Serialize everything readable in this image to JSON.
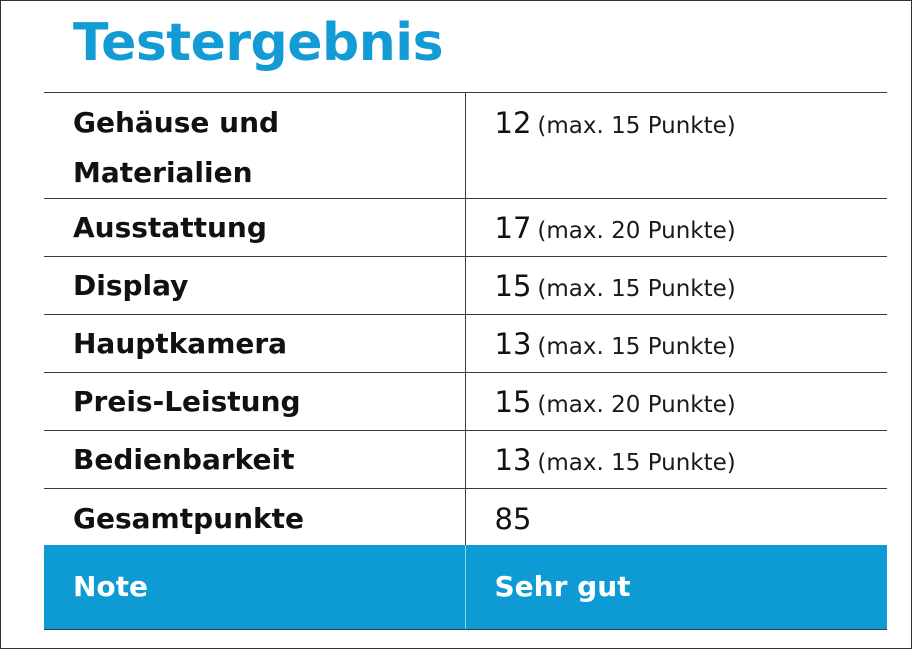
{
  "title": "Testergebnis",
  "rows": [
    {
      "label_line1": "Gehäuse und",
      "label_line2": "Materialien",
      "points": "12",
      "max": "(max. 15 Punkte)"
    },
    {
      "label": "Ausstattung",
      "points": "17",
      "max": "(max. 20 Punkte)"
    },
    {
      "label": "Display",
      "points": "15",
      "max": "(max. 15 Punkte)"
    },
    {
      "label": "Hauptkamera",
      "points": "13",
      "max": "(max. 15 Punkte)"
    },
    {
      "label": "Preis-Leistung",
      "points": "15",
      "max": "(max. 20 Punkte)"
    },
    {
      "label": "Bedienbarkeit",
      "points": "13",
      "max": "(max. 15 Punkte)"
    }
  ],
  "total": {
    "label": "Gesamtpunkte",
    "value": "85"
  },
  "grade": {
    "label": "Note",
    "value": "Sehr gut"
  },
  "colors": {
    "accent": "#139bd6",
    "grade_background": "#0e9bd4",
    "border": "#3c3c3c"
  }
}
